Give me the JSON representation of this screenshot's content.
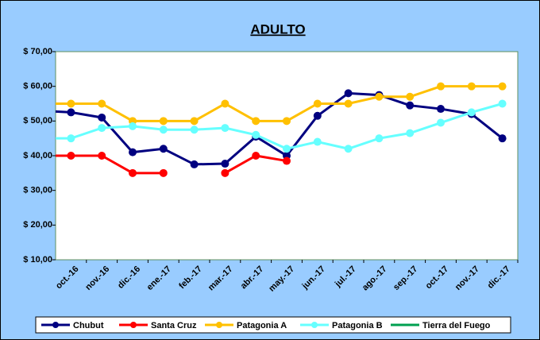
{
  "chart_data": {
    "type": "line",
    "title": "ADULTO",
    "categories": [
      null,
      "oct.-16",
      "nov.-16",
      "dic.-16",
      "ene.-17",
      "feb.-17",
      "mar.-17",
      "abr.-17",
      "may.-17",
      "jun.-17",
      "jul.-17",
      "ago.-17",
      "sep.-17",
      "oct.-17",
      "nov.-17",
      "dic.-17"
    ],
    "series": [
      {
        "name": "Chubut",
        "color": "#000080",
        "values": [
          53,
          52.5,
          51,
          41,
          42,
          37.5,
          37.7,
          45.5,
          40,
          51.5,
          58,
          57.5,
          54.5,
          53.5,
          52,
          45
        ]
      },
      {
        "name": "Santa Cruz",
        "color": "#ff0000",
        "values": [
          40,
          40,
          40,
          35,
          35,
          null,
          35,
          40,
          38.5,
          null,
          null,
          null,
          null,
          null,
          null,
          null
        ]
      },
      {
        "name": "Patagonia A",
        "color": "#ffc000",
        "values": [
          55,
          55,
          55,
          50,
          50,
          50,
          55,
          50,
          50,
          55,
          55,
          57,
          57,
          60,
          60,
          60
        ]
      },
      {
        "name": "Patagonia B",
        "color": "#66ffff",
        "values": [
          45,
          45,
          48,
          48.5,
          47.5,
          47.5,
          48,
          46,
          42,
          44,
          42,
          45,
          46.5,
          49.5,
          52.5,
          55
        ]
      },
      {
        "name": "Tierra del Fuego",
        "color": "#00a050",
        "values": [
          null,
          null,
          null,
          null,
          null,
          null,
          null,
          null,
          null,
          null,
          null,
          null,
          null,
          null,
          null,
          null
        ]
      }
    ],
    "ylim": [
      10,
      70
    ],
    "yticks": [
      {
        "value": 10,
        "label": "$ 10,00"
      },
      {
        "value": 20,
        "label": "$ 20,00"
      },
      {
        "value": 30,
        "label": "$ 30,00"
      },
      {
        "value": 40,
        "label": "$ 40,00"
      },
      {
        "value": 50,
        "label": "$ 50,00"
      },
      {
        "value": 60,
        "label": "$ 60,00"
      },
      {
        "value": 70,
        "label": "$ 70,00"
      }
    ],
    "grid": false,
    "legend": "bottom"
  }
}
